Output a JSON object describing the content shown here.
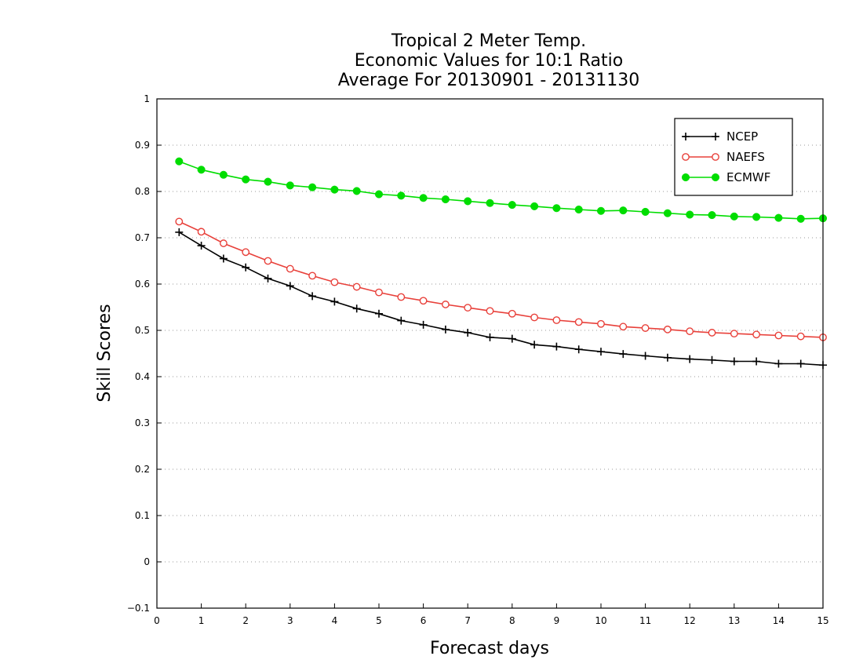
{
  "chart_data": {
    "type": "line",
    "title": [
      "Tropical 2 Meter Temp.",
      "Economic Values for 10:1 Ratio",
      "Average For 20130901 - 20131130"
    ],
    "xlabel": "Forecast days",
    "ylabel": "Skill Scores",
    "xlim": [
      0,
      15
    ],
    "ylim": [
      -0.1,
      1
    ],
    "xticks": [
      0,
      1,
      2,
      3,
      4,
      5,
      6,
      7,
      8,
      9,
      10,
      11,
      12,
      13,
      14,
      15
    ],
    "xtick_labels": [
      "0",
      "1",
      "2",
      "3",
      "4",
      "5",
      "6",
      "7",
      "8",
      "9",
      "10",
      "11",
      "12",
      "13",
      "14",
      "15"
    ],
    "yticks": [
      -0.1,
      0,
      0.1,
      0.2,
      0.3,
      0.4,
      0.5,
      0.6,
      0.7,
      0.8,
      0.9,
      1
    ],
    "ytick_labels": [
      "−0.1",
      "0",
      "0.1",
      "0.2",
      "0.3",
      "0.4",
      "0.5",
      "0.6",
      "0.7",
      "0.8",
      "0.9",
      "1"
    ],
    "grid": "horizontal-dotted",
    "legend_position": "top-right",
    "x": [
      0.5,
      1,
      1.5,
      2,
      2.5,
      3,
      3.5,
      4,
      4.5,
      5,
      5.5,
      6,
      6.5,
      7,
      7.5,
      8,
      8.5,
      9,
      9.5,
      10,
      10.5,
      11,
      11.5,
      12,
      12.5,
      13,
      13.5,
      14,
      14.5,
      15
    ],
    "series": [
      {
        "name": "NCEP",
        "color": "#000000",
        "marker": "plus",
        "values": [
          0.712,
          0.683,
          0.655,
          0.636,
          0.612,
          0.596,
          0.574,
          0.562,
          0.547,
          0.536,
          0.521,
          0.512,
          0.502,
          0.495,
          0.485,
          0.482,
          0.469,
          0.465,
          0.459,
          0.454,
          0.449,
          0.445,
          0.441,
          0.438,
          0.436,
          0.433,
          0.433,
          0.428,
          0.428,
          0.425
        ]
      },
      {
        "name": "NAEFS",
        "color": "#e8403a",
        "marker": "open-circle",
        "values": [
          0.735,
          0.713,
          0.688,
          0.669,
          0.65,
          0.633,
          0.618,
          0.604,
          0.594,
          0.582,
          0.572,
          0.564,
          0.556,
          0.549,
          0.542,
          0.536,
          0.528,
          0.522,
          0.518,
          0.514,
          0.508,
          0.505,
          0.502,
          0.498,
          0.495,
          0.493,
          0.491,
          0.489,
          0.487,
          0.485
        ]
      },
      {
        "name": "ECMWF",
        "color": "#00dd00",
        "marker": "filled-circle",
        "values": [
          0.865,
          0.847,
          0.836,
          0.826,
          0.821,
          0.813,
          0.809,
          0.804,
          0.801,
          0.794,
          0.791,
          0.786,
          0.783,
          0.779,
          0.775,
          0.771,
          0.768,
          0.764,
          0.761,
          0.758,
          0.759,
          0.756,
          0.753,
          0.75,
          0.749,
          0.746,
          0.745,
          0.743,
          0.741,
          0.742
        ]
      }
    ]
  }
}
